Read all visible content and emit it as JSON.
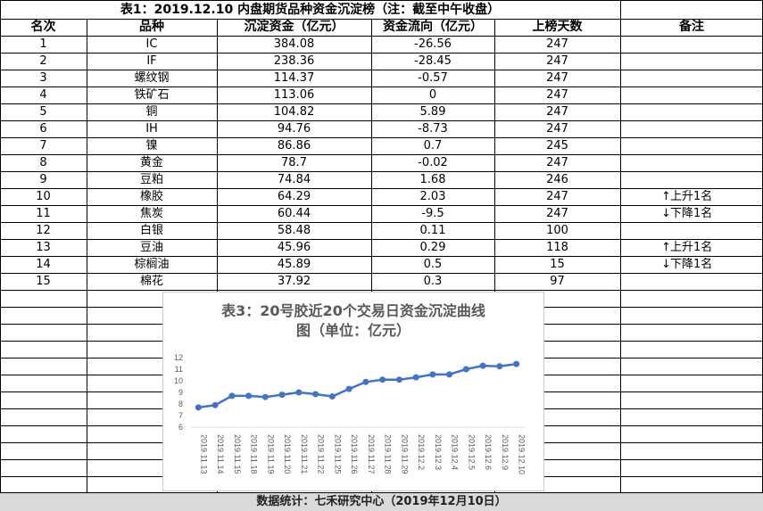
{
  "title": "表1：2019.12.10 内盘期货品种资金沉淀榜（注：截至中午收盘）",
  "headers": {
    "rank": "名次",
    "product": "品种",
    "capital": "沉淀资金（亿元）",
    "flow": "资金流向（亿元）",
    "days": "上榜天数",
    "note": "备注"
  },
  "rows": [
    {
      "rank": "1",
      "product": "IC",
      "capital": "384.08",
      "flow": "-26.56",
      "days": "247",
      "note": ""
    },
    {
      "rank": "2",
      "product": "IF",
      "capital": "238.36",
      "flow": "-28.45",
      "days": "247",
      "note": ""
    },
    {
      "rank": "3",
      "product": "螺纹钢",
      "capital": "114.37",
      "flow": "-0.57",
      "days": "247",
      "note": ""
    },
    {
      "rank": "4",
      "product": "铁矿石",
      "capital": "113.06",
      "flow": "0",
      "days": "247",
      "note": ""
    },
    {
      "rank": "5",
      "product": "铜",
      "capital": "104.82",
      "flow": "5.89",
      "days": "247",
      "note": ""
    },
    {
      "rank": "6",
      "product": "IH",
      "capital": "94.76",
      "flow": "-8.73",
      "days": "247",
      "note": ""
    },
    {
      "rank": "7",
      "product": "镍",
      "capital": "86.86",
      "flow": "0.7",
      "days": "245",
      "note": ""
    },
    {
      "rank": "8",
      "product": "黄金",
      "capital": "78.7",
      "flow": "-0.02",
      "days": "247",
      "note": ""
    },
    {
      "rank": "9",
      "product": "豆粕",
      "capital": "74.84",
      "flow": "1.68",
      "days": "246",
      "note": ""
    },
    {
      "rank": "10",
      "product": "橡胶",
      "capital": "64.29",
      "flow": "2.03",
      "days": "247",
      "note": "上升1名",
      "arrow": "↑"
    },
    {
      "rank": "11",
      "product": "焦炭",
      "capital": "60.44",
      "flow": "-9.5",
      "days": "247",
      "note": "下降1名",
      "arrow": "↓"
    },
    {
      "rank": "12",
      "product": "白银",
      "capital": "58.48",
      "flow": "0.11",
      "days": "100",
      "note": ""
    },
    {
      "rank": "13",
      "product": "豆油",
      "capital": "45.96",
      "flow": "0.29",
      "days": "118",
      "note": "上升1名",
      "arrow": "↑"
    },
    {
      "rank": "14",
      "product": "棕榈油",
      "capital": "45.89",
      "flow": "0.5",
      "days": "15",
      "note": "下降1名",
      "arrow": "↓"
    },
    {
      "rank": "15",
      "product": "棉花",
      "capital": "37.92",
      "flow": "0.3",
      "days": "97",
      "note": ""
    }
  ],
  "footer": "数据统计：七禾研究中心（2019年12月10日）",
  "chart_data": {
    "type": "line",
    "title": "表3：20号胶近20个交易日资金沉淀曲线图（单位：亿元）",
    "title_lines": [
      "表3：20号胶近20个交易日资金沉淀曲线",
      "图（单位：亿元）"
    ],
    "x": [
      "2019.11.13",
      "2019.11.14",
      "2019.11.15",
      "2019.11.18",
      "2019.11.19",
      "2019.11.20",
      "2019.11.21",
      "2019.11.22",
      "2019.11.25",
      "2019.11.26",
      "2019.11.27",
      "2019.11.28",
      "2019.11.29",
      "2019.12.2",
      "2019.12.3",
      "2019.12.4",
      "2019.12.5",
      "2019.12.6",
      "2019.12.9",
      "2019.12.10"
    ],
    "series": [
      {
        "values": [
          7.7,
          7.9,
          8.7,
          8.7,
          8.6,
          8.8,
          9.0,
          8.85,
          8.65,
          9.3,
          9.9,
          10.1,
          10.1,
          10.3,
          10.55,
          10.55,
          11.0,
          11.3,
          11.25,
          11.45
        ]
      }
    ],
    "ylim": [
      6,
      12
    ],
    "yticks": [
      6,
      7,
      8,
      9,
      10,
      11,
      12
    ],
    "grid": false,
    "line_color": "#4472c4"
  }
}
